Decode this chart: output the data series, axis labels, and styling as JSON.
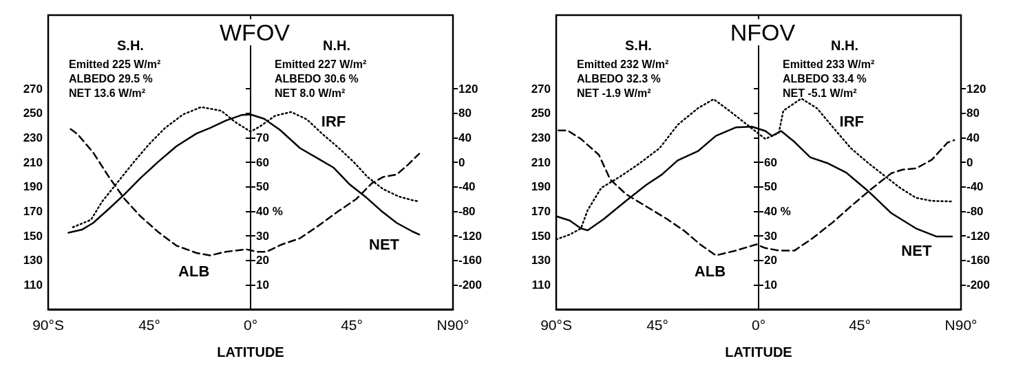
{
  "chart_data": [
    {
      "type": "line",
      "title": "WFOV",
      "xlabel": "LATITUDE",
      "marker": "none",
      "xlim": [
        -90,
        90
      ],
      "xticks": [
        {
          "value": -90,
          "label": "90°S"
        },
        {
          "value": -45,
          "label": "45°"
        },
        {
          "value": 0,
          "label": "0°"
        },
        {
          "value": 45,
          "label": "45°"
        },
        {
          "value": 90,
          "label": "N90°"
        }
      ],
      "ylim": [
        90,
        330
      ],
      "yticks": [
        110,
        130,
        150,
        170,
        190,
        210,
        230,
        250,
        270
      ],
      "y2lim": [
        -240,
        240
      ],
      "y2ticks": [
        -200,
        -160,
        -120,
        -80,
        -40,
        0,
        40,
        80,
        120
      ],
      "y3lim": [
        0,
        120
      ],
      "y3ticks": [
        10,
        20,
        30,
        {
          "value": 40,
          "label": "40 %"
        },
        50,
        60,
        70
      ],
      "series": [
        {
          "name": "IRF",
          "color": "#000000",
          "line_style": "dotted",
          "x": [
            -79,
            -71,
            -66,
            -59,
            -52,
            -45,
            -38,
            -30,
            -22,
            -13,
            -7,
            0,
            4,
            11,
            18,
            25,
            32,
            39,
            46,
            52,
            59,
            66,
            72,
            75
          ],
          "values": [
            157,
            163,
            178,
            194,
            210,
            225,
            238,
            249,
            255,
            252,
            243,
            235,
            239,
            248,
            251,
            245,
            233,
            222,
            210,
            198,
            188,
            182,
            179,
            178
          ]
        },
        {
          "name": "ALB",
          "color": "#000000",
          "line_style": "dashed",
          "axis": "y3",
          "x": [
            -80,
            -77,
            -70,
            -63,
            -56,
            -49,
            -41,
            -33,
            -24,
            -18,
            -11,
            -2,
            3,
            7,
            14,
            22,
            30,
            39,
            47,
            54,
            59,
            65,
            70,
            75
          ],
          "values": [
            73.5,
            71.5,
            64,
            54,
            45,
            38,
            31.5,
            26,
            23,
            22,
            23.5,
            24.5,
            23.5,
            23.5,
            26.5,
            29,
            34,
            40,
            45,
            51.5,
            54,
            55,
            59,
            63.5
          ]
        },
        {
          "name": "NET",
          "color": "#000000",
          "line_style": "solid",
          "axis": "y2",
          "x": [
            -81,
            -75,
            -70,
            -63,
            -56,
            -49,
            -41,
            -33,
            -24,
            -18,
            -11,
            -4,
            0,
            6,
            13,
            22,
            30,
            37,
            44,
            51,
            58,
            65,
            72,
            75
          ],
          "values": [
            -115,
            -110,
            -99,
            -76,
            -52,
            -26,
            1,
            26,
            47,
            56,
            68,
            77,
            78,
            71,
            53,
            23,
            6,
            -9,
            -36,
            -56,
            -79,
            -99,
            -113,
            -118
          ]
        }
      ],
      "annotations": [
        "S.H.",
        "Emitted 225 W/m²",
        "ALBEDO 29.5 %",
        "NET 13.6 W/m²",
        "N.H.",
        "Emitted 227 W/m²",
        "ALBEDO 30.6 %",
        "NET 8.0 W/m²"
      ]
    },
    {
      "type": "line",
      "title": "NFOV",
      "xlabel": "LATITUDE",
      "marker": "none",
      "xlim": [
        -90,
        90
      ],
      "xticks": [
        {
          "value": -90,
          "label": "90°S"
        },
        {
          "value": -45,
          "label": "45°"
        },
        {
          "value": 0,
          "label": "0°"
        },
        {
          "value": 45,
          "label": "45°"
        },
        {
          "value": 90,
          "label": "N90°"
        }
      ],
      "ylim": [
        90,
        330
      ],
      "yticks": [
        110,
        130,
        150,
        170,
        190,
        210,
        230,
        250,
        270
      ],
      "y2lim": [
        -240,
        240
      ],
      "y2ticks": [
        -200,
        -160,
        -120,
        -80,
        -40,
        0,
        40,
        80,
        120
      ],
      "y3lim": [
        0,
        120
      ],
      "y3ticks": [
        10,
        20,
        30,
        {
          "value": 40,
          "label": "40 %"
        },
        50,
        60
      ],
      "series": [
        {
          "name": "IRF",
          "color": "#000000",
          "line_style": "dotted",
          "x": [
            -90,
            -84,
            -79,
            -76,
            -70,
            -61,
            -53,
            -44,
            -36,
            -27,
            -20,
            -13,
            -4,
            3,
            9,
            11,
            19,
            26,
            34,
            41,
            49,
            56,
            63,
            70,
            77,
            86
          ],
          "values": [
            147,
            151,
            156,
            171,
            189,
            199,
            209,
            221.5,
            240.5,
            254,
            261.5,
            252,
            239,
            229,
            234,
            252,
            262,
            254,
            236.5,
            221.5,
            209,
            199,
            189,
            181,
            178.5,
            178
          ]
        },
        {
          "name": "ALB",
          "color": "#000000",
          "line_style": "dashed",
          "axis": "y3",
          "x": [
            -89,
            -85,
            -79,
            -71,
            -66,
            -59,
            -50,
            -41,
            -33,
            -26,
            -19,
            -10,
            -1,
            3,
            9,
            16,
            24,
            33,
            41,
            50,
            59,
            64,
            70,
            77,
            84,
            87
          ],
          "values": [
            73,
            73,
            69.5,
            63,
            53,
            47,
            42,
            37,
            32,
            26.5,
            22,
            24,
            26.5,
            25,
            24,
            24,
            29,
            35.5,
            42,
            49,
            55.5,
            57,
            57.5,
            61,
            68,
            69
          ]
        },
        {
          "name": "NET",
          "color": "#000000",
          "line_style": "solid",
          "axis": "y2",
          "x": [
            -90,
            -84,
            -79,
            -76,
            -69,
            -59,
            -50,
            -43,
            -36,
            -27,
            -19,
            -10,
            -3,
            3,
            6,
            10,
            16,
            23,
            31,
            39,
            49,
            59,
            70,
            79,
            86
          ],
          "values": [
            -88,
            -95,
            -108,
            -111,
            -93,
            -63,
            -37,
            -20,
            3,
            18,
            43,
            57,
            58,
            51,
            43,
            51,
            33,
            8,
            -2,
            -17,
            -48,
            -83,
            -108,
            -121,
            -121
          ]
        }
      ],
      "annotations": [
        "S.H.",
        "Emitted 232 W/m²",
        "ALBEDO 32.3 %",
        "NET -1.9 W/m²",
        "N.H.",
        "Emitted 233 W/m²",
        "ALBEDO 33.4 %",
        "NET -5.1 W/m²"
      ]
    }
  ]
}
